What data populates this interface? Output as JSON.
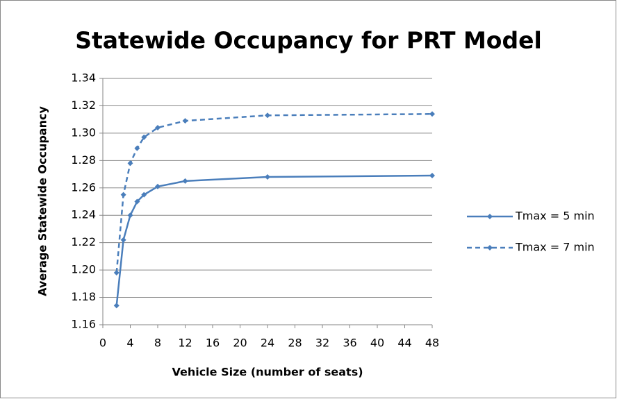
{
  "chart_data": {
    "type": "line",
    "title": "Statewide Occupancy for PRT Model",
    "x_label": "Vehicle Size (number of seats)",
    "y_label": "Average Statewide Occupancy",
    "x": [
      2,
      3,
      4,
      5,
      6,
      8,
      12,
      24,
      48
    ],
    "series": [
      {
        "name": "Tmax = 5 min",
        "color": "#4a7ebb",
        "line_style": "solid",
        "values": [
          1.174,
          1.222,
          1.24,
          1.25,
          1.255,
          1.261,
          1.265,
          1.268,
          1.269
        ]
      },
      {
        "name": "Tmax = 7 min",
        "color": "#4a7ebb",
        "line_style": "dashed",
        "values": [
          1.198,
          1.255,
          1.278,
          1.289,
          1.297,
          1.304,
          1.309,
          1.313,
          1.314
        ]
      }
    ],
    "xlim": [
      0,
      48
    ],
    "xticks": [
      0,
      4,
      8,
      12,
      16,
      20,
      24,
      28,
      32,
      36,
      40,
      44,
      48
    ],
    "ylim": [
      1.16,
      1.34
    ],
    "yticks": [
      1.16,
      1.18,
      {
        "value": 1.2,
        "label": "1.20"
      },
      1.22,
      1.24,
      1.26,
      1.28,
      {
        "value": 1.3,
        "label": "1.30"
      },
      1.32,
      1.34
    ],
    "grid": true,
    "legend": "right"
  }
}
